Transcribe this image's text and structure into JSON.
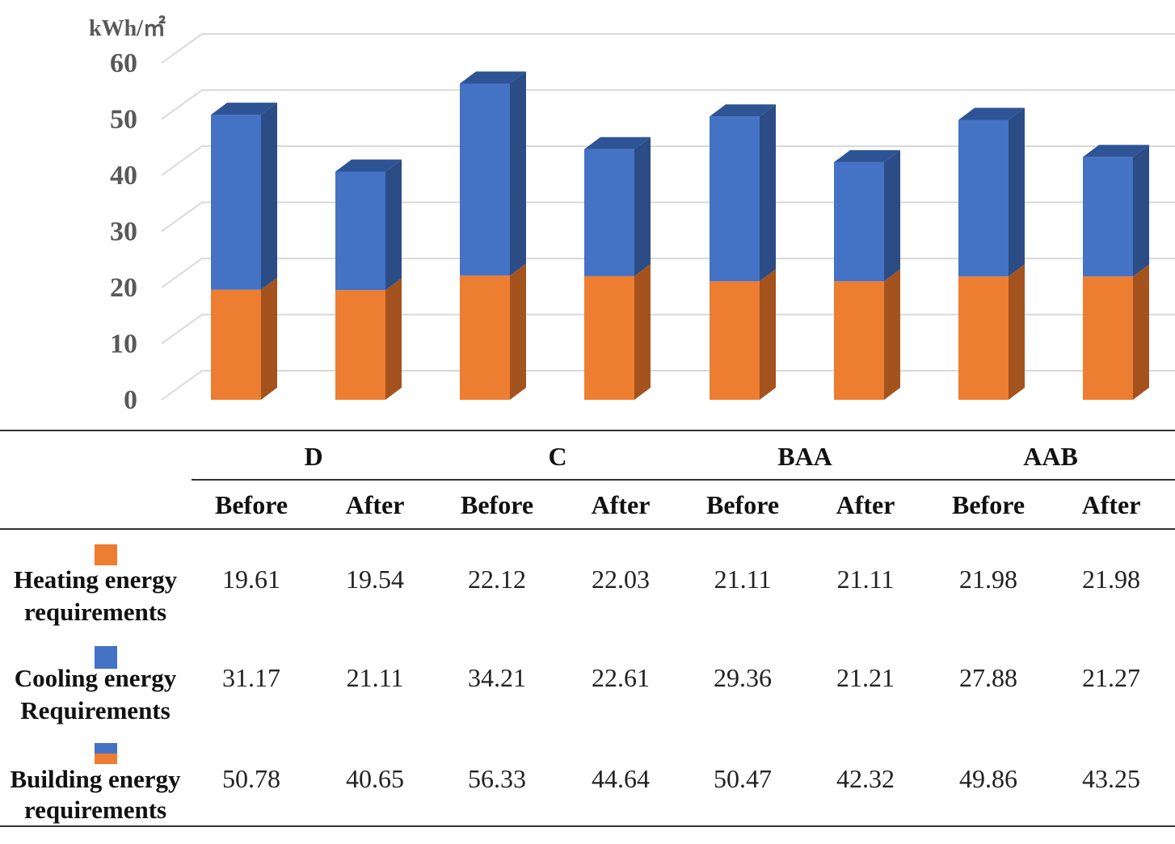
{
  "colors": {
    "heating": "#ED7D31",
    "heating_side": "#A5531E",
    "heating_top": "#C8641F",
    "cooling": "#4472C4",
    "cooling_side": "#2C4C86",
    "cooling_top": "#2E5496",
    "grid": "#D9D9D9",
    "axis_text": "#595959"
  },
  "chart_data": {
    "type": "bar",
    "stacked": true,
    "three_d": true,
    "ylabel": "kWh/㎡",
    "ylim": [
      0,
      60
    ],
    "yticks": [
      0,
      10,
      20,
      30,
      40,
      50,
      60
    ],
    "grid": true,
    "groups": [
      "D",
      "C",
      "BAA",
      "AAB"
    ],
    "subcategories": [
      "Before",
      "After"
    ],
    "categories": [
      "D Before",
      "D After",
      "C Before",
      "C After",
      "BAA Before",
      "BAA After",
      "AAB Before",
      "AAB After"
    ],
    "series": [
      {
        "name": "Heating energy requirements",
        "values": [
          19.61,
          19.54,
          22.12,
          22.03,
          21.11,
          21.11,
          21.98,
          21.98
        ]
      },
      {
        "name": "Cooling energy Requirements",
        "values": [
          31.17,
          21.11,
          34.21,
          22.61,
          29.36,
          21.21,
          27.88,
          21.27
        ]
      }
    ],
    "totals": {
      "name": "Building energy requirements",
      "values": [
        50.78,
        40.65,
        56.33,
        44.64,
        50.47,
        42.32,
        49.86,
        43.25
      ]
    }
  },
  "table": {
    "groups": [
      "D",
      "C",
      "BAA",
      "AAB"
    ],
    "subheaders": [
      "Before",
      "After",
      "Before",
      "After",
      "Before",
      "After",
      "Before",
      "After"
    ],
    "rows": [
      {
        "label_line1": "Heating energy",
        "label_line2": "requirements",
        "swatch": "heating",
        "values": [
          "19.61",
          "19.54",
          "22.12",
          "22.03",
          "21.11",
          "21.11",
          "21.98",
          "21.98"
        ]
      },
      {
        "label_line1": "Cooling energy",
        "label_line2": "Requirements",
        "swatch": "cooling",
        "values": [
          "31.17",
          "21.11",
          "34.21",
          "22.61",
          "29.36",
          "21.21",
          "27.88",
          "21.27"
        ]
      },
      {
        "label_line1": "Building energy",
        "label_line2": "requirements",
        "swatch": "both",
        "values": [
          "50.78",
          "40.65",
          "56.33",
          "44.64",
          "50.47",
          "42.32",
          "49.86",
          "43.25"
        ]
      }
    ]
  }
}
